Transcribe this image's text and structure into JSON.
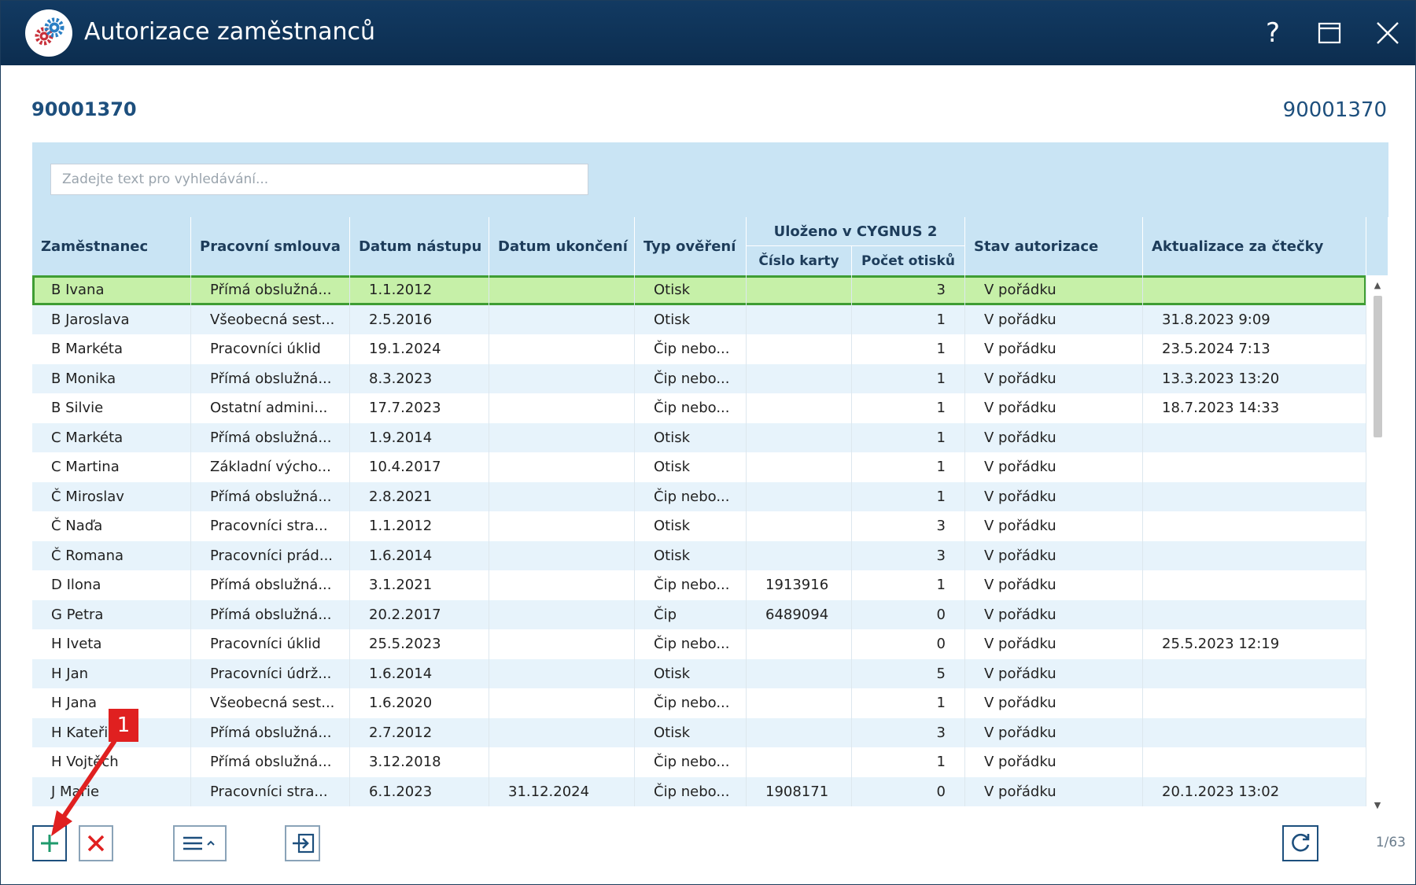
{
  "window": {
    "title": "Autorizace zaměstnanců"
  },
  "titlebar": {
    "help_label": "?"
  },
  "context": {
    "code_left": "90001370",
    "code_right": "90001370"
  },
  "search": {
    "placeholder": "Zadejte text pro vyhledávání..."
  },
  "grid": {
    "columns": [
      "Zaměstnanec",
      "Pracovní smlouva",
      "Datum nástupu",
      "Datum ukončení",
      "Typ ověření",
      "Číslo karty",
      "Počet otisků",
      "Stav autorizace",
      "Aktualizace za čtečky"
    ],
    "group_header": "Uloženo v CYGNUS 2",
    "rows": [
      [
        "B Ivana",
        "Přímá obslužná...",
        "1.1.2012",
        "",
        "Otisk",
        "",
        "3",
        "V pořádku",
        ""
      ],
      [
        "B Jaroslava",
        "Všeobecná sest...",
        "2.5.2016",
        "",
        "Otisk",
        "",
        "1",
        "V pořádku",
        "31.8.2023 9:09"
      ],
      [
        "B Markéta",
        "Pracovníci úklid",
        "19.1.2024",
        "",
        "Čip nebo...",
        "",
        "1",
        "V pořádku",
        "23.5.2024 7:13"
      ],
      [
        "B Monika",
        "Přímá obslužná...",
        "8.3.2023",
        "",
        "Čip nebo...",
        "",
        "1",
        "V pořádku",
        "13.3.2023 13:20"
      ],
      [
        "B Silvie",
        "Ostatní admini...",
        "17.7.2023",
        "",
        "Čip nebo...",
        "",
        "1",
        "V pořádku",
        "18.7.2023 14:33"
      ],
      [
        "C Markéta",
        "Přímá obslužná...",
        "1.9.2014",
        "",
        "Otisk",
        "",
        "1",
        "V pořádku",
        ""
      ],
      [
        "C Martina",
        "Základní výcho...",
        "10.4.2017",
        "",
        "Otisk",
        "",
        "1",
        "V pořádku",
        ""
      ],
      [
        "Č Miroslav",
        "Přímá obslužná...",
        "2.8.2021",
        "",
        "Čip nebo...",
        "",
        "1",
        "V pořádku",
        ""
      ],
      [
        "Č Naďa",
        "Pracovníci stra...",
        "1.1.2012",
        "",
        "Otisk",
        "",
        "3",
        "V pořádku",
        ""
      ],
      [
        "Č Romana",
        "Pracovníci prád...",
        "1.6.2014",
        "",
        "Otisk",
        "",
        "3",
        "V pořádku",
        ""
      ],
      [
        "D Ilona",
        "Přímá obslužná...",
        "3.1.2021",
        "",
        "Čip nebo...",
        "1913916",
        "1",
        "V pořádku",
        ""
      ],
      [
        "G Petra",
        "Přímá obslužná...",
        "20.2.2017",
        "",
        "Čip",
        "6489094",
        "0",
        "V pořádku",
        ""
      ],
      [
        "H Iveta",
        "Pracovníci úklid",
        "25.5.2023",
        "",
        "Čip nebo...",
        "",
        "0",
        "V pořádku",
        "25.5.2023 12:19"
      ],
      [
        "H Jan",
        "Pracovníci údrž...",
        "1.6.2014",
        "",
        "Otisk",
        "",
        "5",
        "V pořádku",
        ""
      ],
      [
        "H Jana",
        "Všeobecná sest...",
        "1.6.2020",
        "",
        "Čip nebo...",
        "",
        "1",
        "V pořádku",
        ""
      ],
      [
        "H Kateřina",
        "Přímá obslužná...",
        "2.7.2012",
        "",
        "Otisk",
        "",
        "3",
        "V pořádku",
        ""
      ],
      [
        "H Vojtěch",
        "Přímá obslužná...",
        "3.12.2018",
        "",
        "Čip nebo...",
        "",
        "1",
        "V pořádku",
        ""
      ],
      [
        "J Marie",
        "Pracovníci stra...",
        "6.1.2023",
        "31.12.2024",
        "Čip nebo...",
        "1908171",
        "0",
        "V pořádku",
        "20.1.2023 13:02"
      ]
    ],
    "selected_row": 0
  },
  "footer": {
    "pager": "1/63"
  },
  "annotation": {
    "callout_number": "1",
    "color": "#e02020"
  },
  "colors": {
    "titlebar": "#0c2d4f",
    "accent": "#1d4f7d",
    "selection": "#c6f0a8",
    "selection_border": "#3f9d33",
    "delete": "#e02020",
    "add": "#1f9a6c"
  }
}
